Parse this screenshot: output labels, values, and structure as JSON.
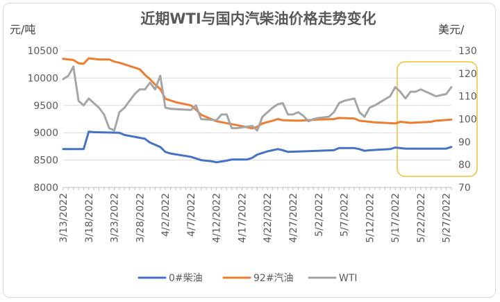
{
  "chart_data": {
    "type": "line",
    "title": "近期WTI与国内汽柴油价格走势变化",
    "y_left_unit": "元/吨",
    "y_right_unit": "美元/",
    "y_left": {
      "min": 8000,
      "max": 10500,
      "ticks": [
        8000,
        8500,
        9000,
        9500,
        10000,
        10500
      ]
    },
    "y_right": {
      "min": 70,
      "max": 130,
      "ticks": [
        70,
        80,
        90,
        100,
        110,
        120,
        130
      ]
    },
    "x_labels": [
      "3/13/2022",
      "3/18/2022",
      "3/23/2022",
      "3/28/2022",
      "4/2/2022",
      "4/7/2022",
      "4/12/2022",
      "4/17/2022",
      "4/22/2022",
      "4/27/2022",
      "5/2/2022",
      "5/7/2022",
      "5/12/2022",
      "5/17/2022",
      "5/22/2022",
      "5/27/2022"
    ],
    "legend_position": "bottom",
    "grid": true,
    "series": [
      {
        "name": "0#柴油",
        "axis": "left",
        "color": "#4472c4",
        "points": [
          [
            "3/13/2022",
            8700
          ],
          [
            "3/17/2022",
            8700
          ],
          [
            "3/18/2022",
            9020
          ],
          [
            "3/19/2022",
            9010
          ],
          [
            "3/24/2022",
            9000
          ],
          [
            "3/25/2022",
            8960
          ],
          [
            "3/29/2022",
            8890
          ],
          [
            "3/30/2022",
            8820
          ],
          [
            "3/31/2022",
            8780
          ],
          [
            "4/1/2022",
            8740
          ],
          [
            "4/2/2022",
            8650
          ],
          [
            "4/3/2022",
            8620
          ],
          [
            "4/7/2022",
            8560
          ],
          [
            "4/9/2022",
            8500
          ],
          [
            "4/11/2022",
            8480
          ],
          [
            "4/12/2022",
            8460
          ],
          [
            "4/14/2022",
            8490
          ],
          [
            "4/15/2022",
            8510
          ],
          [
            "4/18/2022",
            8510
          ],
          [
            "4/19/2022",
            8540
          ],
          [
            "4/20/2022",
            8600
          ],
          [
            "4/22/2022",
            8660
          ],
          [
            "4/24/2022",
            8700
          ],
          [
            "4/25/2022",
            8680
          ],
          [
            "4/26/2022",
            8650
          ],
          [
            "4/29/2022",
            8660
          ],
          [
            "5/5/2022",
            8680
          ],
          [
            "5/6/2022",
            8720
          ],
          [
            "5/9/2022",
            8720
          ],
          [
            "5/10/2022",
            8700
          ],
          [
            "5/11/2022",
            8670
          ],
          [
            "5/12/2022",
            8680
          ],
          [
            "5/16/2022",
            8700
          ],
          [
            "5/17/2022",
            8730
          ],
          [
            "5/19/2022",
            8710
          ],
          [
            "5/27/2022",
            8710
          ],
          [
            "5/28/2022",
            8740
          ]
        ]
      },
      {
        "name": "92#汽油",
        "axis": "left",
        "color": "#ed7d31",
        "points": [
          [
            "3/13/2022",
            10350
          ],
          [
            "3/15/2022",
            10330
          ],
          [
            "3/16/2022",
            10270
          ],
          [
            "3/17/2022",
            10260
          ],
          [
            "3/18/2022",
            10360
          ],
          [
            "3/20/2022",
            10340
          ],
          [
            "3/22/2022",
            10340
          ],
          [
            "3/23/2022",
            10300
          ],
          [
            "3/24/2022",
            10280
          ],
          [
            "3/28/2022",
            10160
          ],
          [
            "3/29/2022",
            10060
          ],
          [
            "3/30/2022",
            9980
          ],
          [
            "3/31/2022",
            9880
          ],
          [
            "4/1/2022",
            9800
          ],
          [
            "4/2/2022",
            9620
          ],
          [
            "4/4/2022",
            9560
          ],
          [
            "4/7/2022",
            9500
          ],
          [
            "4/8/2022",
            9420
          ],
          [
            "4/9/2022",
            9330
          ],
          [
            "4/11/2022",
            9250
          ],
          [
            "4/12/2022",
            9210
          ],
          [
            "4/16/2022",
            9140
          ],
          [
            "4/17/2022",
            9120
          ],
          [
            "4/19/2022",
            9080
          ],
          [
            "4/20/2022",
            9110
          ],
          [
            "4/21/2022",
            9170
          ],
          [
            "4/23/2022",
            9220
          ],
          [
            "4/24/2022",
            9250
          ],
          [
            "4/25/2022",
            9230
          ],
          [
            "4/28/2022",
            9220
          ],
          [
            "5/2/2022",
            9240
          ],
          [
            "5/5/2022",
            9250
          ],
          [
            "5/6/2022",
            9270
          ],
          [
            "5/9/2022",
            9260
          ],
          [
            "5/10/2022",
            9220
          ],
          [
            "5/13/2022",
            9190
          ],
          [
            "5/17/2022",
            9170
          ],
          [
            "5/18/2022",
            9200
          ],
          [
            "5/20/2022",
            9180
          ],
          [
            "5/24/2022",
            9200
          ],
          [
            "5/25/2022",
            9220
          ],
          [
            "5/28/2022",
            9240
          ]
        ]
      },
      {
        "name": "WTI",
        "axis": "right",
        "color": "#a5a5a5",
        "points": [
          [
            "3/13/2022",
            117.5
          ],
          [
            "3/14/2022",
            119
          ],
          [
            "3/15/2022",
            123
          ],
          [
            "3/16/2022",
            108
          ],
          [
            "3/17/2022",
            106
          ],
          [
            "3/18/2022",
            109
          ],
          [
            "3/19/2022",
            107
          ],
          [
            "3/20/2022",
            105
          ],
          [
            "3/21/2022",
            102
          ],
          [
            "3/22/2022",
            96
          ],
          [
            "3/23/2022",
            95
          ],
          [
            "3/24/2022",
            103
          ],
          [
            "3/25/2022",
            105
          ],
          [
            "3/26/2022",
            108
          ],
          [
            "3/27/2022",
            111
          ],
          [
            "3/28/2022",
            113
          ],
          [
            "3/29/2022",
            113
          ],
          [
            "3/30/2022",
            116
          ],
          [
            "3/31/2022",
            113
          ],
          [
            "4/1/2022",
            119
          ],
          [
            "4/2/2022",
            105
          ],
          [
            "4/3/2022",
            104.5
          ],
          [
            "4/7/2022",
            104
          ],
          [
            "4/8/2022",
            106
          ],
          [
            "4/9/2022",
            100
          ],
          [
            "4/12/2022",
            99.5
          ],
          [
            "4/13/2022",
            102
          ],
          [
            "4/14/2022",
            102
          ],
          [
            "4/15/2022",
            96
          ],
          [
            "4/16/2022",
            96
          ],
          [
            "4/19/2022",
            97
          ],
          [
            "4/20/2022",
            95
          ],
          [
            "4/21/2022",
            101
          ],
          [
            "4/23/2022",
            105
          ],
          [
            "4/24/2022",
            106.5
          ],
          [
            "4/25/2022",
            107
          ],
          [
            "4/26/2022",
            102
          ],
          [
            "4/27/2022",
            102
          ],
          [
            "4/28/2022",
            103
          ],
          [
            "4/29/2022",
            101.5
          ],
          [
            "4/30/2022",
            99
          ],
          [
            "5/1/2022",
            100
          ],
          [
            "5/2/2022",
            100.5
          ],
          [
            "5/4/2022",
            101
          ],
          [
            "5/5/2022",
            103
          ],
          [
            "5/6/2022",
            107
          ],
          [
            "5/7/2022",
            108
          ],
          [
            "5/9/2022",
            109
          ],
          [
            "5/10/2022",
            103
          ],
          [
            "5/11/2022",
            101
          ],
          [
            "5/12/2022",
            105
          ],
          [
            "5/13/2022",
            106
          ],
          [
            "5/16/2022",
            110
          ],
          [
            "5/17/2022",
            114
          ],
          [
            "5/18/2022",
            112
          ],
          [
            "5/19/2022",
            109
          ],
          [
            "5/20/2022",
            112
          ],
          [
            "5/21/2022",
            112
          ],
          [
            "5/22/2022",
            113
          ],
          [
            "5/24/2022",
            111
          ],
          [
            "5/25/2022",
            110
          ],
          [
            "5/26/2022",
            110.5
          ],
          [
            "5/27/2022",
            111
          ],
          [
            "5/28/2022",
            114
          ]
        ]
      }
    ]
  }
}
